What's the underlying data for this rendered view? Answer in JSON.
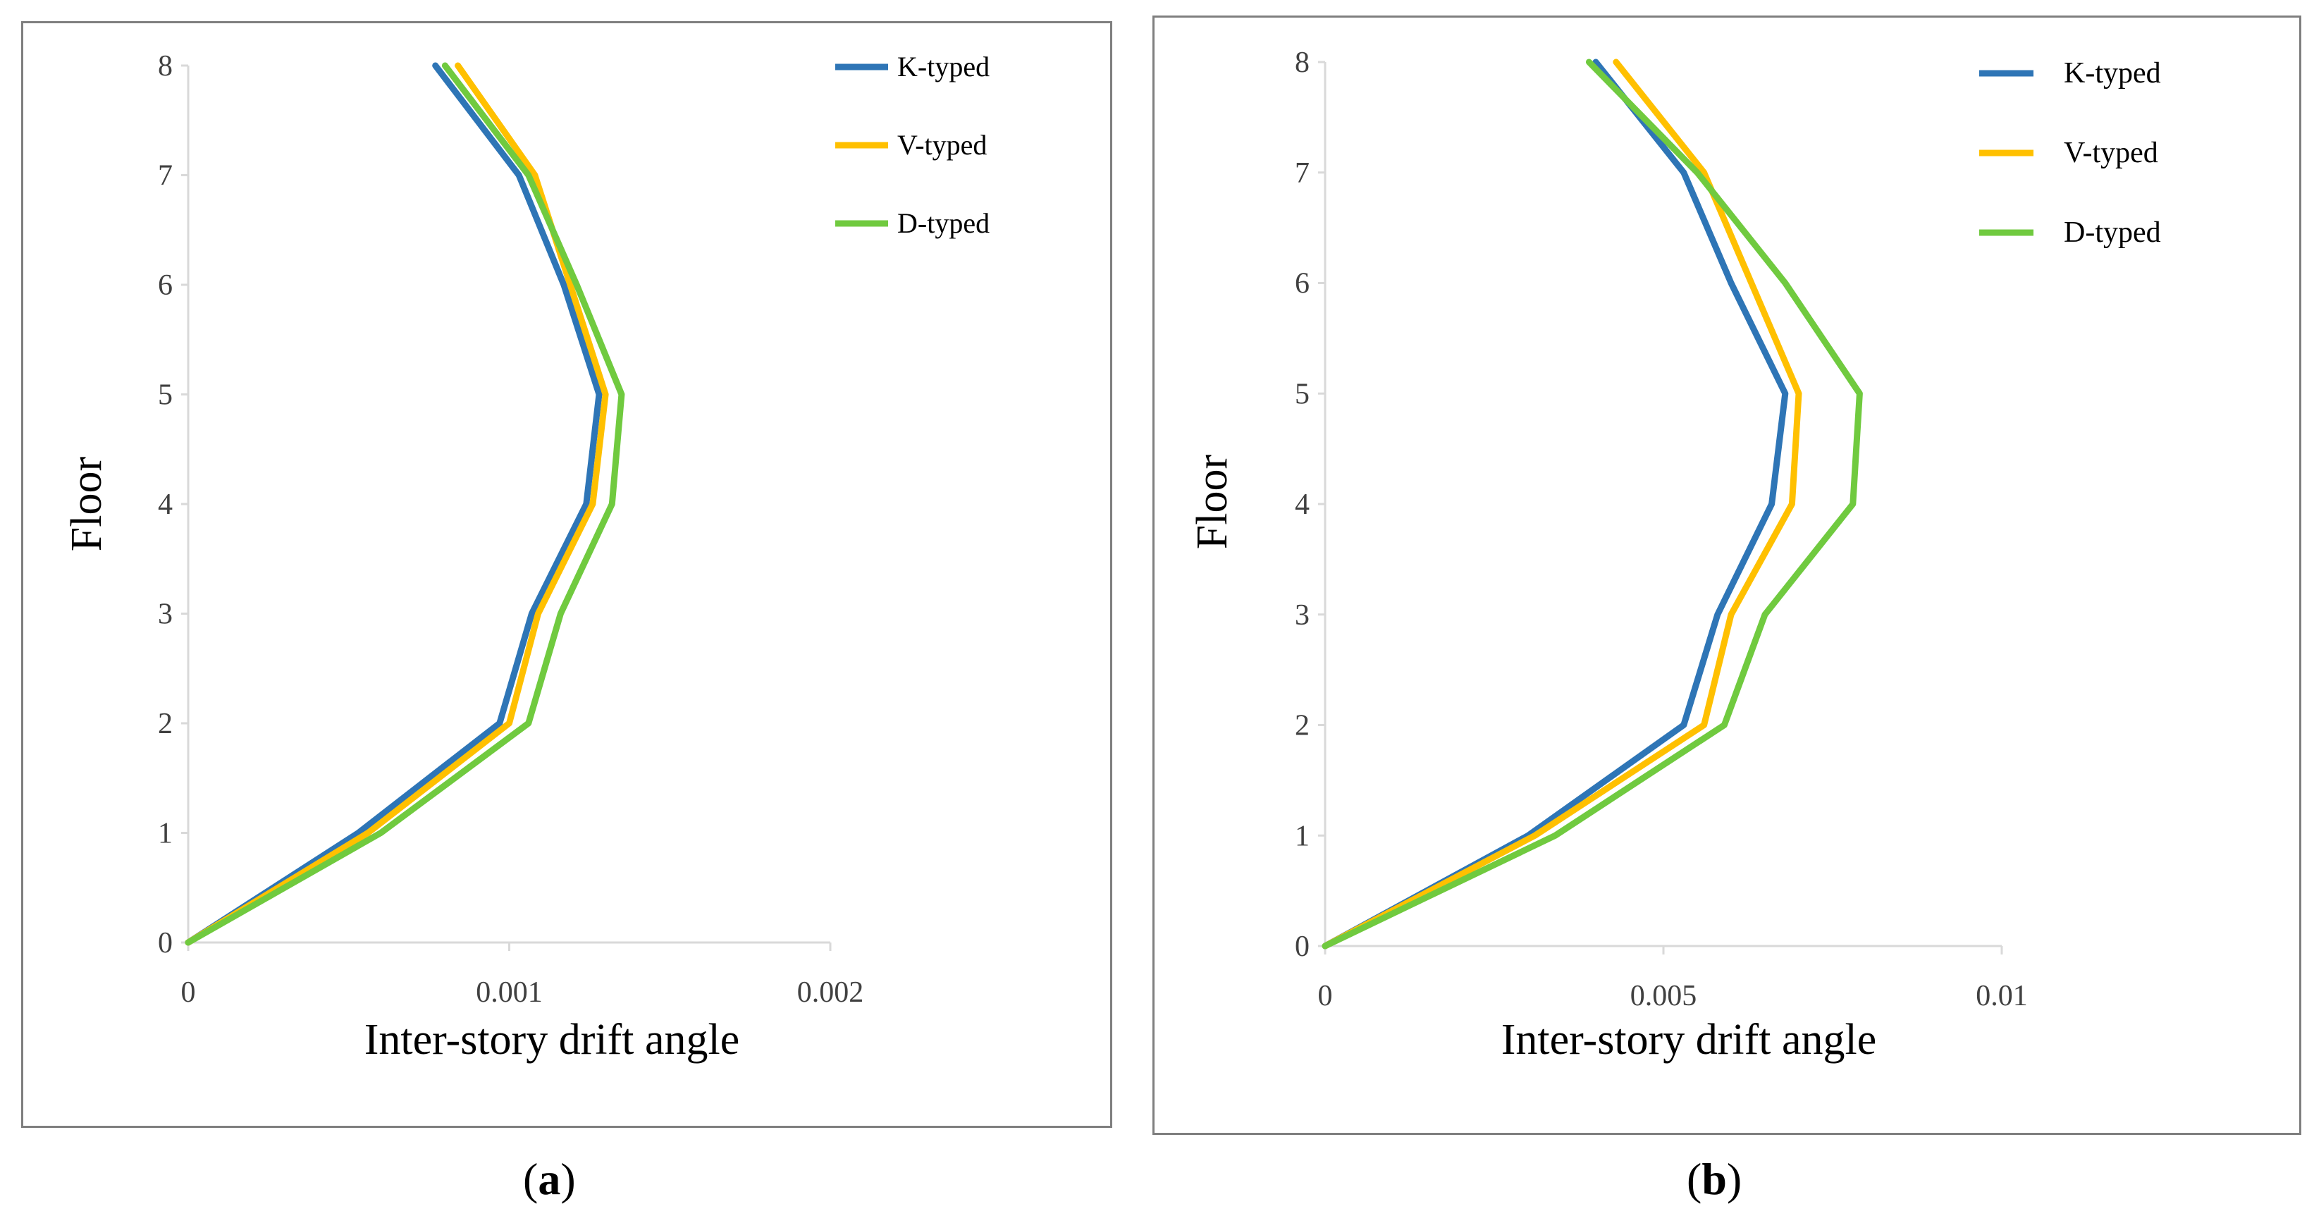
{
  "figure": {
    "captions": [
      {
        "open": "(",
        "letter": "a",
        "close": ")"
      },
      {
        "open": "(",
        "letter": "b",
        "close": ")"
      }
    ]
  },
  "colors": {
    "K-typed": "#2e75b6",
    "V-typed": "#ffc000",
    "D-typed": "#70ca3f",
    "axis": "#d9d9d9",
    "frame": "#7f7f7f"
  },
  "chart_data": [
    {
      "type": "line",
      "panel": "a",
      "title": "",
      "xlabel": "Inter-story drift angle",
      "ylabel": "Floor",
      "xlim": [
        0,
        0.002
      ],
      "ylim": [
        0,
        8
      ],
      "xticks": [
        0,
        0.001,
        0.002
      ],
      "xtick_labels": [
        "0",
        "0.001",
        "0.002"
      ],
      "yticks": [
        0,
        1,
        2,
        3,
        4,
        5,
        6,
        7,
        8
      ],
      "ytick_labels": [
        "0",
        "1",
        "2",
        "3",
        "4",
        "5",
        "6",
        "7",
        "8"
      ],
      "legend_position": "top-right",
      "grid": false,
      "floors": [
        0,
        1,
        2,
        3,
        4,
        5,
        6,
        7,
        8
      ],
      "series": [
        {
          "name": "K-typed",
          "values": [
            0,
            0.00053,
            0.00097,
            0.00107,
            0.00124,
            0.00128,
            0.00117,
            0.00103,
            0.00077
          ]
        },
        {
          "name": "V-typed",
          "values": [
            0,
            0.00056,
            0.001,
            0.00109,
            0.00126,
            0.0013,
            0.00119,
            0.00108,
            0.00084
          ]
        },
        {
          "name": "D-typed",
          "values": [
            0,
            0.0006,
            0.00106,
            0.00116,
            0.00132,
            0.00135,
            0.00121,
            0.00106,
            0.0008
          ]
        }
      ]
    },
    {
      "type": "line",
      "panel": "b",
      "title": "",
      "xlabel": "Inter-story drift angle",
      "ylabel": "Floor",
      "xlim": [
        0,
        0.01
      ],
      "ylim": [
        0,
        8
      ],
      "xticks": [
        0,
        0.005,
        0.01
      ],
      "xtick_labels": [
        "0",
        "0.005",
        "0.01"
      ],
      "yticks": [
        0,
        1,
        2,
        3,
        4,
        5,
        6,
        7,
        8
      ],
      "ytick_labels": [
        "0",
        "1",
        "2",
        "3",
        "4",
        "5",
        "6",
        "7",
        "8"
      ],
      "legend_position": "top-right",
      "grid": false,
      "floors": [
        0,
        1,
        2,
        3,
        4,
        5,
        6,
        7,
        8
      ],
      "series": [
        {
          "name": "K-typed",
          "values": [
            0,
            0.003,
            0.0053,
            0.0058,
            0.0066,
            0.0068,
            0.006,
            0.0053,
            0.004
          ]
        },
        {
          "name": "V-typed",
          "values": [
            0,
            0.0031,
            0.0056,
            0.006,
            0.0069,
            0.007,
            0.0063,
            0.0056,
            0.0043
          ]
        },
        {
          "name": "D-typed",
          "values": [
            0,
            0.0034,
            0.0059,
            0.0065,
            0.0078,
            0.0079,
            0.0068,
            0.0055,
            0.0039
          ]
        }
      ]
    }
  ]
}
